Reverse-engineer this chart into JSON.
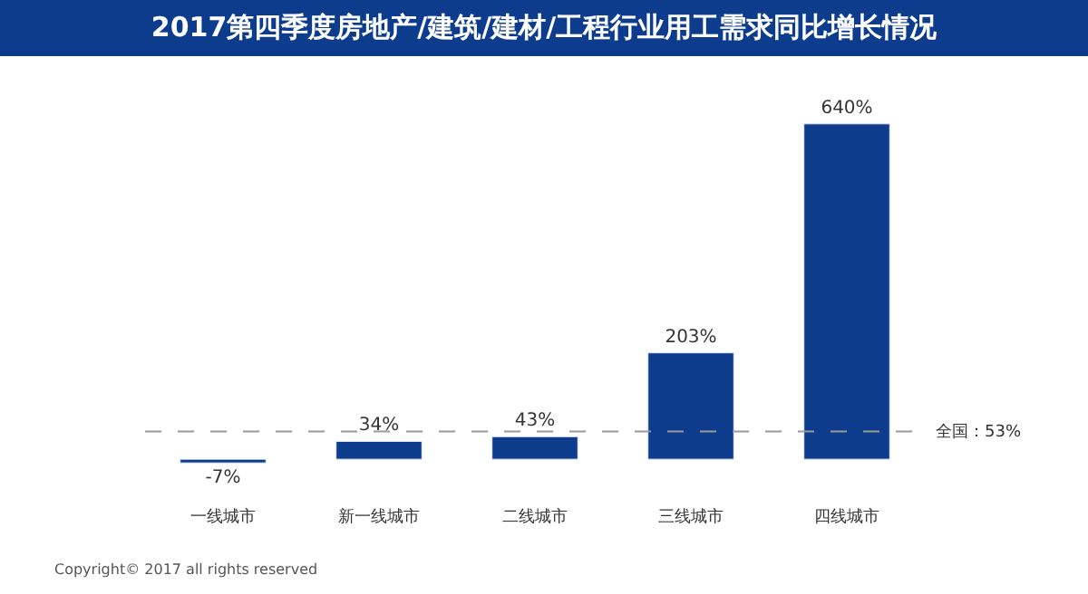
{
  "chart_data": {
    "type": "bar",
    "title": "2017第四季度房地产/建筑/建材/工程行业用工需求同比增长情况",
    "categories": [
      "一线城市",
      "新一线城市",
      "二线城市",
      "三线城市",
      "四线城市"
    ],
    "values": [
      -7,
      34,
      43,
      203,
      640
    ],
    "value_labels": [
      "-7%",
      "34%",
      "43%",
      "203%",
      "640%"
    ],
    "color": "#0d3c8c",
    "ref_lines": [
      {
        "axis": "y",
        "value": 53,
        "label": "全国：53%",
        "color": "#999999",
        "line_style": "dashed"
      }
    ],
    "annotations": [
      "Copyright© 2017 all rights reserved"
    ],
    "legend": false
  }
}
